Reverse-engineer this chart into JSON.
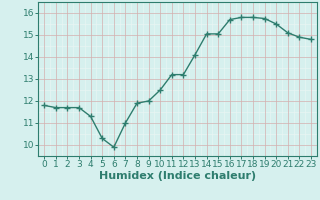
{
  "xlabel": "Humidex (Indice chaleur)",
  "x": [
    0,
    1,
    2,
    3,
    4,
    5,
    6,
    7,
    8,
    9,
    10,
    11,
    12,
    13,
    14,
    15,
    16,
    17,
    18,
    19,
    20,
    21,
    22,
    23
  ],
  "y": [
    11.8,
    11.7,
    11.7,
    11.7,
    11.3,
    10.3,
    9.9,
    11.0,
    11.9,
    12.0,
    12.5,
    13.2,
    13.2,
    14.1,
    15.05,
    15.05,
    15.7,
    15.8,
    15.8,
    15.75,
    15.5,
    15.1,
    14.9,
    14.8
  ],
  "line_color": "#2e7d6e",
  "marker": "+",
  "marker_size": 4,
  "marker_lw": 1.0,
  "bg_color": "#d6f0ee",
  "grid_minor_color": "#d4aeae",
  "grid_major_color": "#e8f5f3",
  "ylim": [
    9.5,
    16.5
  ],
  "xlim": [
    -0.5,
    23.5
  ],
  "yticks": [
    10,
    11,
    12,
    13,
    14,
    15,
    16
  ],
  "xticks": [
    0,
    1,
    2,
    3,
    4,
    5,
    6,
    7,
    8,
    9,
    10,
    11,
    12,
    13,
    14,
    15,
    16,
    17,
    18,
    19,
    20,
    21,
    22,
    23
  ],
  "tick_fontsize": 6.5,
  "xlabel_fontsize": 8,
  "line_width": 1.0,
  "spine_color": "#2e7d6e"
}
